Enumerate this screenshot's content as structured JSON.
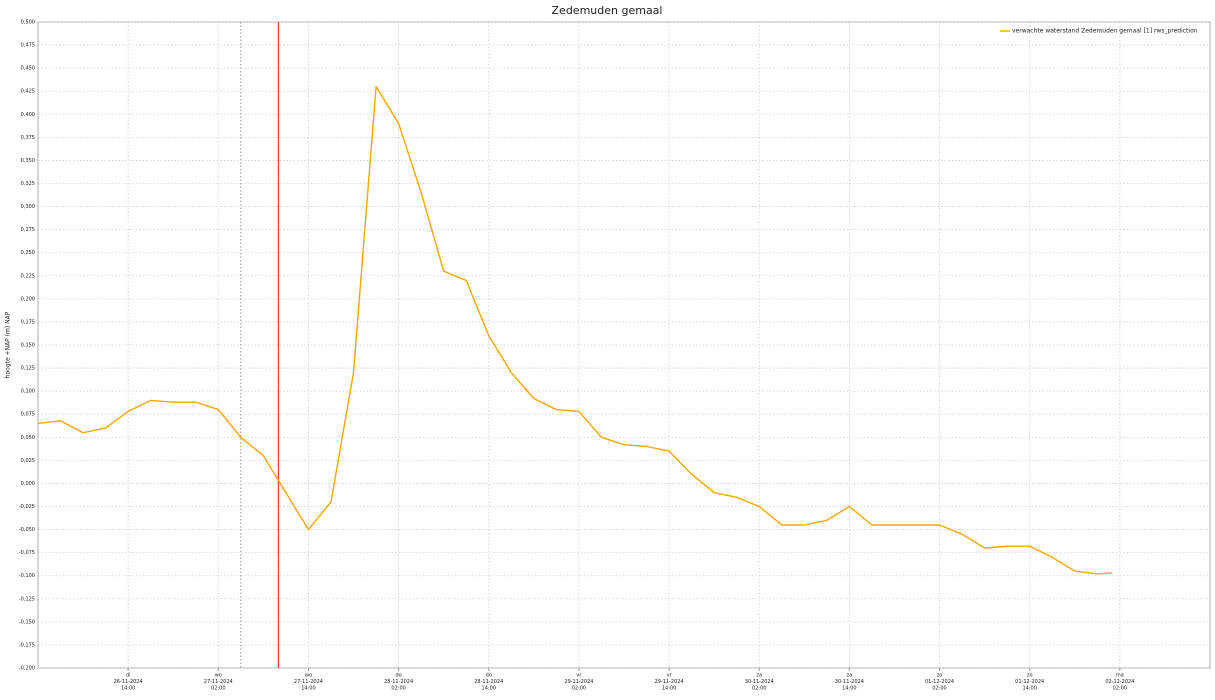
{
  "chart_data": {
    "type": "line",
    "title": "Zedemuden gemaal",
    "y_label": "hoogte +NAP (m) NAP",
    "x": [
      "2024-11-26T02:00",
      "2024-11-26T05:00",
      "2024-11-26T08:00",
      "2024-11-26T11:00",
      "2024-11-26T14:00",
      "2024-11-26T17:00",
      "2024-11-26T20:00",
      "2024-11-26T23:00",
      "2024-11-27T02:00",
      "2024-11-27T05:00",
      "2024-11-27T08:00",
      "2024-11-27T11:00",
      "2024-11-27T14:00",
      "2024-11-27T17:00",
      "2024-11-27T20:00",
      "2024-11-27T23:00",
      "2024-11-28T02:00",
      "2024-11-28T05:00",
      "2024-11-28T08:00",
      "2024-11-28T11:00",
      "2024-11-28T14:00",
      "2024-11-28T17:00",
      "2024-11-28T20:00",
      "2024-11-28T23:00",
      "2024-11-29T02:00",
      "2024-11-29T05:00",
      "2024-11-29T08:00",
      "2024-11-29T11:00",
      "2024-11-29T14:00",
      "2024-11-29T17:00",
      "2024-11-29T20:00",
      "2024-11-29T23:00",
      "2024-11-30T02:00",
      "2024-11-30T05:00",
      "2024-11-30T08:00",
      "2024-11-30T11:00",
      "2024-11-30T14:00",
      "2024-11-30T17:00",
      "2024-11-30T20:00",
      "2024-11-30T23:00",
      "2024-12-01T02:00",
      "2024-12-01T05:00",
      "2024-12-01T08:00",
      "2024-12-01T11:00",
      "2024-12-01T14:00",
      "2024-12-01T17:00",
      "2024-12-01T20:00",
      "2024-12-01T23:00",
      "2024-12-02T01:00"
    ],
    "series": [
      {
        "name": "verwachte waterstand Zedemuden gemaal [1] rws_prediction",
        "color": "#f5a800",
        "values": [
          0.065,
          0.068,
          0.055,
          0.06,
          0.078,
          0.09,
          0.088,
          0.088,
          0.08,
          0.05,
          0.03,
          -0.01,
          -0.05,
          -0.02,
          0.12,
          0.43,
          0.39,
          0.315,
          0.23,
          0.22,
          0.16,
          0.12,
          0.092,
          0.08,
          0.078,
          0.05,
          0.042,
          0.04,
          0.035,
          0.01,
          -0.01,
          -0.015,
          -0.025,
          -0.045,
          -0.045,
          -0.04,
          -0.025,
          -0.045,
          -0.045,
          -0.045,
          -0.045,
          -0.055,
          -0.07,
          -0.068,
          -0.068,
          -0.08,
          -0.095,
          -0.098,
          -0.097
        ]
      }
    ],
    "xlim": [
      "2024-11-26T02:00",
      "2024-12-02T14:00"
    ],
    "xticks": [
      {
        "value": "2024-11-26T14:00",
        "label": [
          "di",
          "26-11-2024",
          "14:00"
        ]
      },
      {
        "value": "2024-11-27T02:00",
        "label": [
          "wo",
          "27-11-2024",
          "02:00"
        ]
      },
      {
        "value": "2024-11-27T14:00",
        "label": [
          "wo",
          "27-11-2024",
          "14:00"
        ]
      },
      {
        "value": "2024-11-28T02:00",
        "label": [
          "do",
          "28-11-2024",
          "02:00"
        ]
      },
      {
        "value": "2024-11-28T14:00",
        "label": [
          "do",
          "28-11-2024",
          "14:00"
        ]
      },
      {
        "value": "2024-11-29T02:00",
        "label": [
          "vr",
          "29-11-2024",
          "02:00"
        ]
      },
      {
        "value": "2024-11-29T14:00",
        "label": [
          "vr",
          "29-11-2024",
          "14:00"
        ]
      },
      {
        "value": "2024-11-30T02:00",
        "label": [
          "za",
          "30-11-2024",
          "02:00"
        ]
      },
      {
        "value": "2024-11-30T14:00",
        "label": [
          "za",
          "30-11-2024",
          "14:00"
        ]
      },
      {
        "value": "2024-12-01T02:00",
        "label": [
          "zo",
          "01-12-2024",
          "02:00"
        ]
      },
      {
        "value": "2024-12-01T14:00",
        "label": [
          "zo",
          "01-12-2024",
          "14:00"
        ]
      },
      {
        "value": "2024-12-02T02:00",
        "label": [
          "ma",
          "02-12-2024",
          "02:00"
        ]
      }
    ],
    "ylim": [
      -0.2,
      0.5
    ],
    "yticks": [
      {
        "value": 0.5,
        "label": "0,500"
      },
      {
        "value": 0.475,
        "label": "0,475"
      },
      {
        "value": 0.45,
        "label": "0,450"
      },
      {
        "value": 0.425,
        "label": "0,425"
      },
      {
        "value": 0.4,
        "label": "0,400"
      },
      {
        "value": 0.375,
        "label": "0,375"
      },
      {
        "value": 0.35,
        "label": "0,350"
      },
      {
        "value": 0.325,
        "label": "0,325"
      },
      {
        "value": 0.3,
        "label": "0,300"
      },
      {
        "value": 0.275,
        "label": "0,275"
      },
      {
        "value": 0.25,
        "label": "0,250"
      },
      {
        "value": 0.225,
        "label": "0,225"
      },
      {
        "value": 0.2,
        "label": "0,200"
      },
      {
        "value": 0.175,
        "label": "0,175"
      },
      {
        "value": 0.15,
        "label": "0,150"
      },
      {
        "value": 0.125,
        "label": "0,125"
      },
      {
        "value": 0.1,
        "label": "0,100"
      },
      {
        "value": 0.075,
        "label": "0,075"
      },
      {
        "value": 0.05,
        "label": "0,050"
      },
      {
        "value": 0.025,
        "label": "0,025"
      },
      {
        "value": 0,
        "label": "0,000"
      },
      {
        "value": -0.025,
        "label": "-0,025"
      },
      {
        "value": -0.05,
        "label": "-0,050"
      },
      {
        "value": -0.075,
        "label": "-0,075"
      },
      {
        "value": -0.1,
        "label": "-0,100"
      },
      {
        "value": -0.125,
        "label": "-0,125"
      },
      {
        "value": -0.15,
        "label": "-0,150"
      },
      {
        "value": -0.175,
        "label": "-0,175"
      },
      {
        "value": -0.2,
        "label": "-0,200"
      }
    ],
    "grid": true,
    "legend": "top-right",
    "markers": [
      {
        "x": "2024-11-27T05:00",
        "color": "#888888",
        "style": "dotted"
      },
      {
        "x": "2024-11-27T10:00",
        "color": "#e8443a",
        "style": "solid"
      }
    ]
  }
}
